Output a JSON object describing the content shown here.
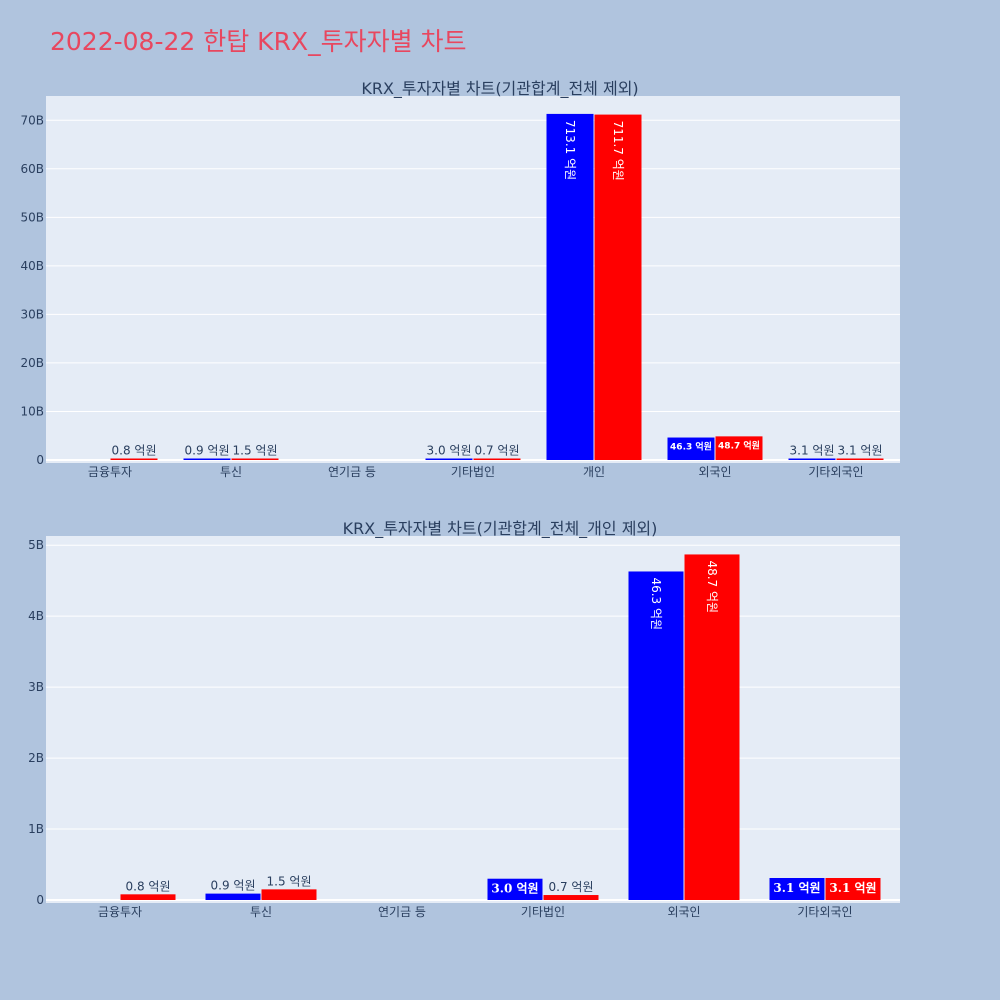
{
  "page": {
    "title": "2022-08-22 한탑 KRX_투자자별 차트"
  },
  "colors": {
    "sell": "#0000ff",
    "buy": "#ff0000",
    "plot_bg": "#e5ecf6",
    "page_bg": "#b0c4de",
    "title": "#e8475f",
    "text": "#2a3f5f"
  },
  "chart_data": [
    {
      "type": "bar",
      "title": "KRX_투자자별 차트(기관합계_전체 제외)",
      "categories": [
        "금융투자",
        "투신",
        "연기금 등",
        "기타법인",
        "개인",
        "외국인",
        "기타외국인"
      ],
      "series": [
        {
          "color": "blue",
          "values": [
            0,
            90000000,
            0,
            300000000,
            71310000000,
            4630000000,
            310000000
          ],
          "labels": [
            "",
            "0.9 억원",
            "",
            "3.0 억원",
            "713.1 억원",
            "46.3 억원",
            "3.1 억원"
          ]
        },
        {
          "color": "red",
          "values": [
            80000000,
            150000000,
            0,
            70000000,
            71170000000,
            4870000000,
            310000000
          ],
          "labels": [
            "0.8 억원",
            "1.5 억원",
            "",
            "0.7 억원",
            "711.7 억원",
            "48.7 억원",
            "3.1 억원"
          ]
        }
      ],
      "ylim": [
        0,
        75000000000
      ],
      "yticks": [
        0,
        10000000000,
        20000000000,
        30000000000,
        40000000000,
        50000000000,
        60000000000,
        70000000000
      ],
      "ytick_labels": [
        "0",
        "10B",
        "20B",
        "30B",
        "40B",
        "50B",
        "60B",
        "70B"
      ],
      "grid": true
    },
    {
      "type": "bar",
      "title": "KRX_투자자별 차트(기관합계_전체_개인 제외)",
      "categories": [
        "금융투자",
        "투신",
        "연기금 등",
        "기타법인",
        "외국인",
        "기타외국인"
      ],
      "series": [
        {
          "color": "blue",
          "values": [
            0,
            90000000,
            0,
            300000000,
            4630000000,
            310000000
          ],
          "labels": [
            "",
            "0.9 억원",
            "",
            "3.0 억원",
            "46.3 억원",
            "3.1 억원"
          ]
        },
        {
          "color": "red",
          "values": [
            80000000,
            150000000,
            0,
            70000000,
            4870000000,
            310000000
          ],
          "labels": [
            "0.8 억원",
            "1.5 억원",
            "",
            "0.7 억원",
            "48.7 억원",
            "3.1 억원"
          ]
        }
      ],
      "ylim": [
        0,
        5130000000
      ],
      "yticks": [
        0,
        1000000000,
        2000000000,
        3000000000,
        4000000000,
        5000000000
      ],
      "ytick_labels": [
        "0",
        "1B",
        "2B",
        "3B",
        "4B",
        "5B"
      ],
      "grid": true
    }
  ]
}
